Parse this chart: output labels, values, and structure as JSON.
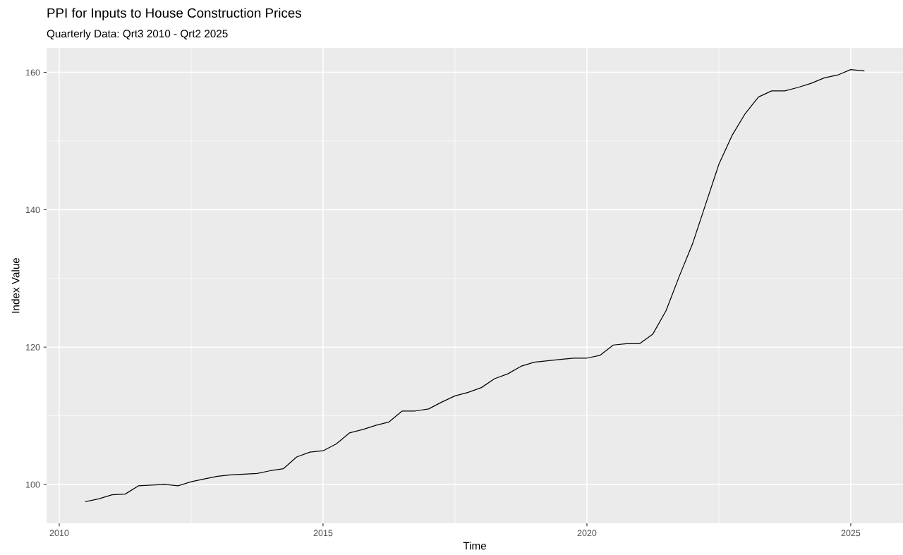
{
  "chart_data": {
    "type": "line",
    "title": "PPI for Inputs to House Construction Prices",
    "subtitle": "Quarterly Data: Qrt3 2010 - Qrt2 2025",
    "xlabel": "Time",
    "ylabel": "Index Value",
    "x": [
      2010.5,
      2010.75,
      2011.0,
      2011.25,
      2011.5,
      2011.75,
      2012.0,
      2012.25,
      2012.5,
      2012.75,
      2013.0,
      2013.25,
      2013.5,
      2013.75,
      2014.0,
      2014.25,
      2014.5,
      2014.75,
      2015.0,
      2015.25,
      2015.5,
      2015.75,
      2016.0,
      2016.25,
      2016.5,
      2016.75,
      2017.0,
      2017.25,
      2017.5,
      2017.75,
      2018.0,
      2018.25,
      2018.5,
      2018.75,
      2019.0,
      2019.25,
      2019.5,
      2019.75,
      2020.0,
      2020.25,
      2020.5,
      2020.75,
      2021.0,
      2021.25,
      2021.5,
      2021.75,
      2022.0,
      2022.25,
      2022.5,
      2022.75,
      2023.0,
      2023.25,
      2023.5,
      2023.75,
      2024.0,
      2024.25,
      2024.5,
      2024.75,
      2025.0,
      2025.25
    ],
    "series": [
      {
        "color": "#000000",
        "values": [
          97.5,
          97.9,
          98.5,
          98.6,
          99.8,
          99.9,
          100.0,
          99.8,
          100.4,
          100.8,
          101.2,
          101.4,
          101.5,
          101.6,
          102.0,
          102.3,
          104.0,
          104.7,
          104.9,
          105.9,
          107.5,
          108.0,
          108.6,
          109.1,
          110.7,
          110.7,
          111.0,
          112.0,
          112.9,
          113.4,
          114.1,
          115.4,
          116.1,
          117.2,
          117.8,
          118.0,
          118.2,
          118.4,
          118.4,
          118.8,
          120.3,
          120.5,
          120.5,
          121.9,
          125.3,
          130.3,
          135.0,
          140.8,
          146.6,
          150.8,
          154.0,
          156.4,
          157.3,
          157.3,
          157.8,
          158.4,
          159.2,
          159.6,
          160.4,
          160.2
        ]
      }
    ],
    "xlim": [
      2009.76,
      2025.99
    ],
    "xticks": [
      2010,
      2015,
      2020,
      2025
    ],
    "ylim": [
      94.35,
      163.55
    ],
    "yticks": [
      100,
      120,
      140,
      160
    ],
    "grid": true,
    "marker": "none",
    "line_style": "solid"
  }
}
